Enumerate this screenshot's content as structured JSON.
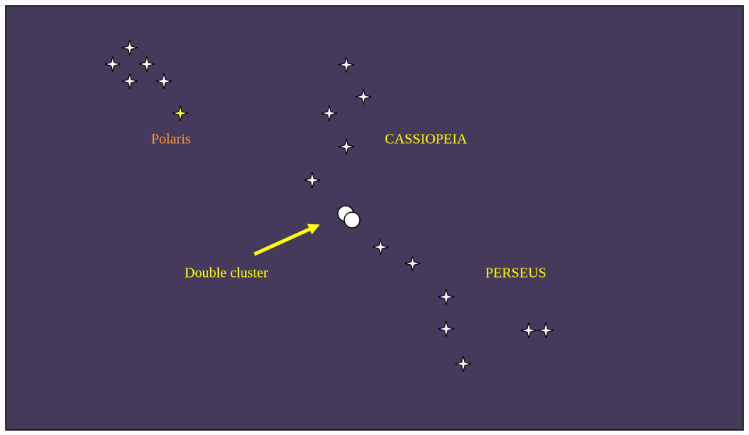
{
  "labels": {
    "polaris": "Polaris",
    "cassiopeia": "CASSIOPEIA",
    "double_cluster": "Double cluster",
    "perseus": "PERSEUS"
  }
}
